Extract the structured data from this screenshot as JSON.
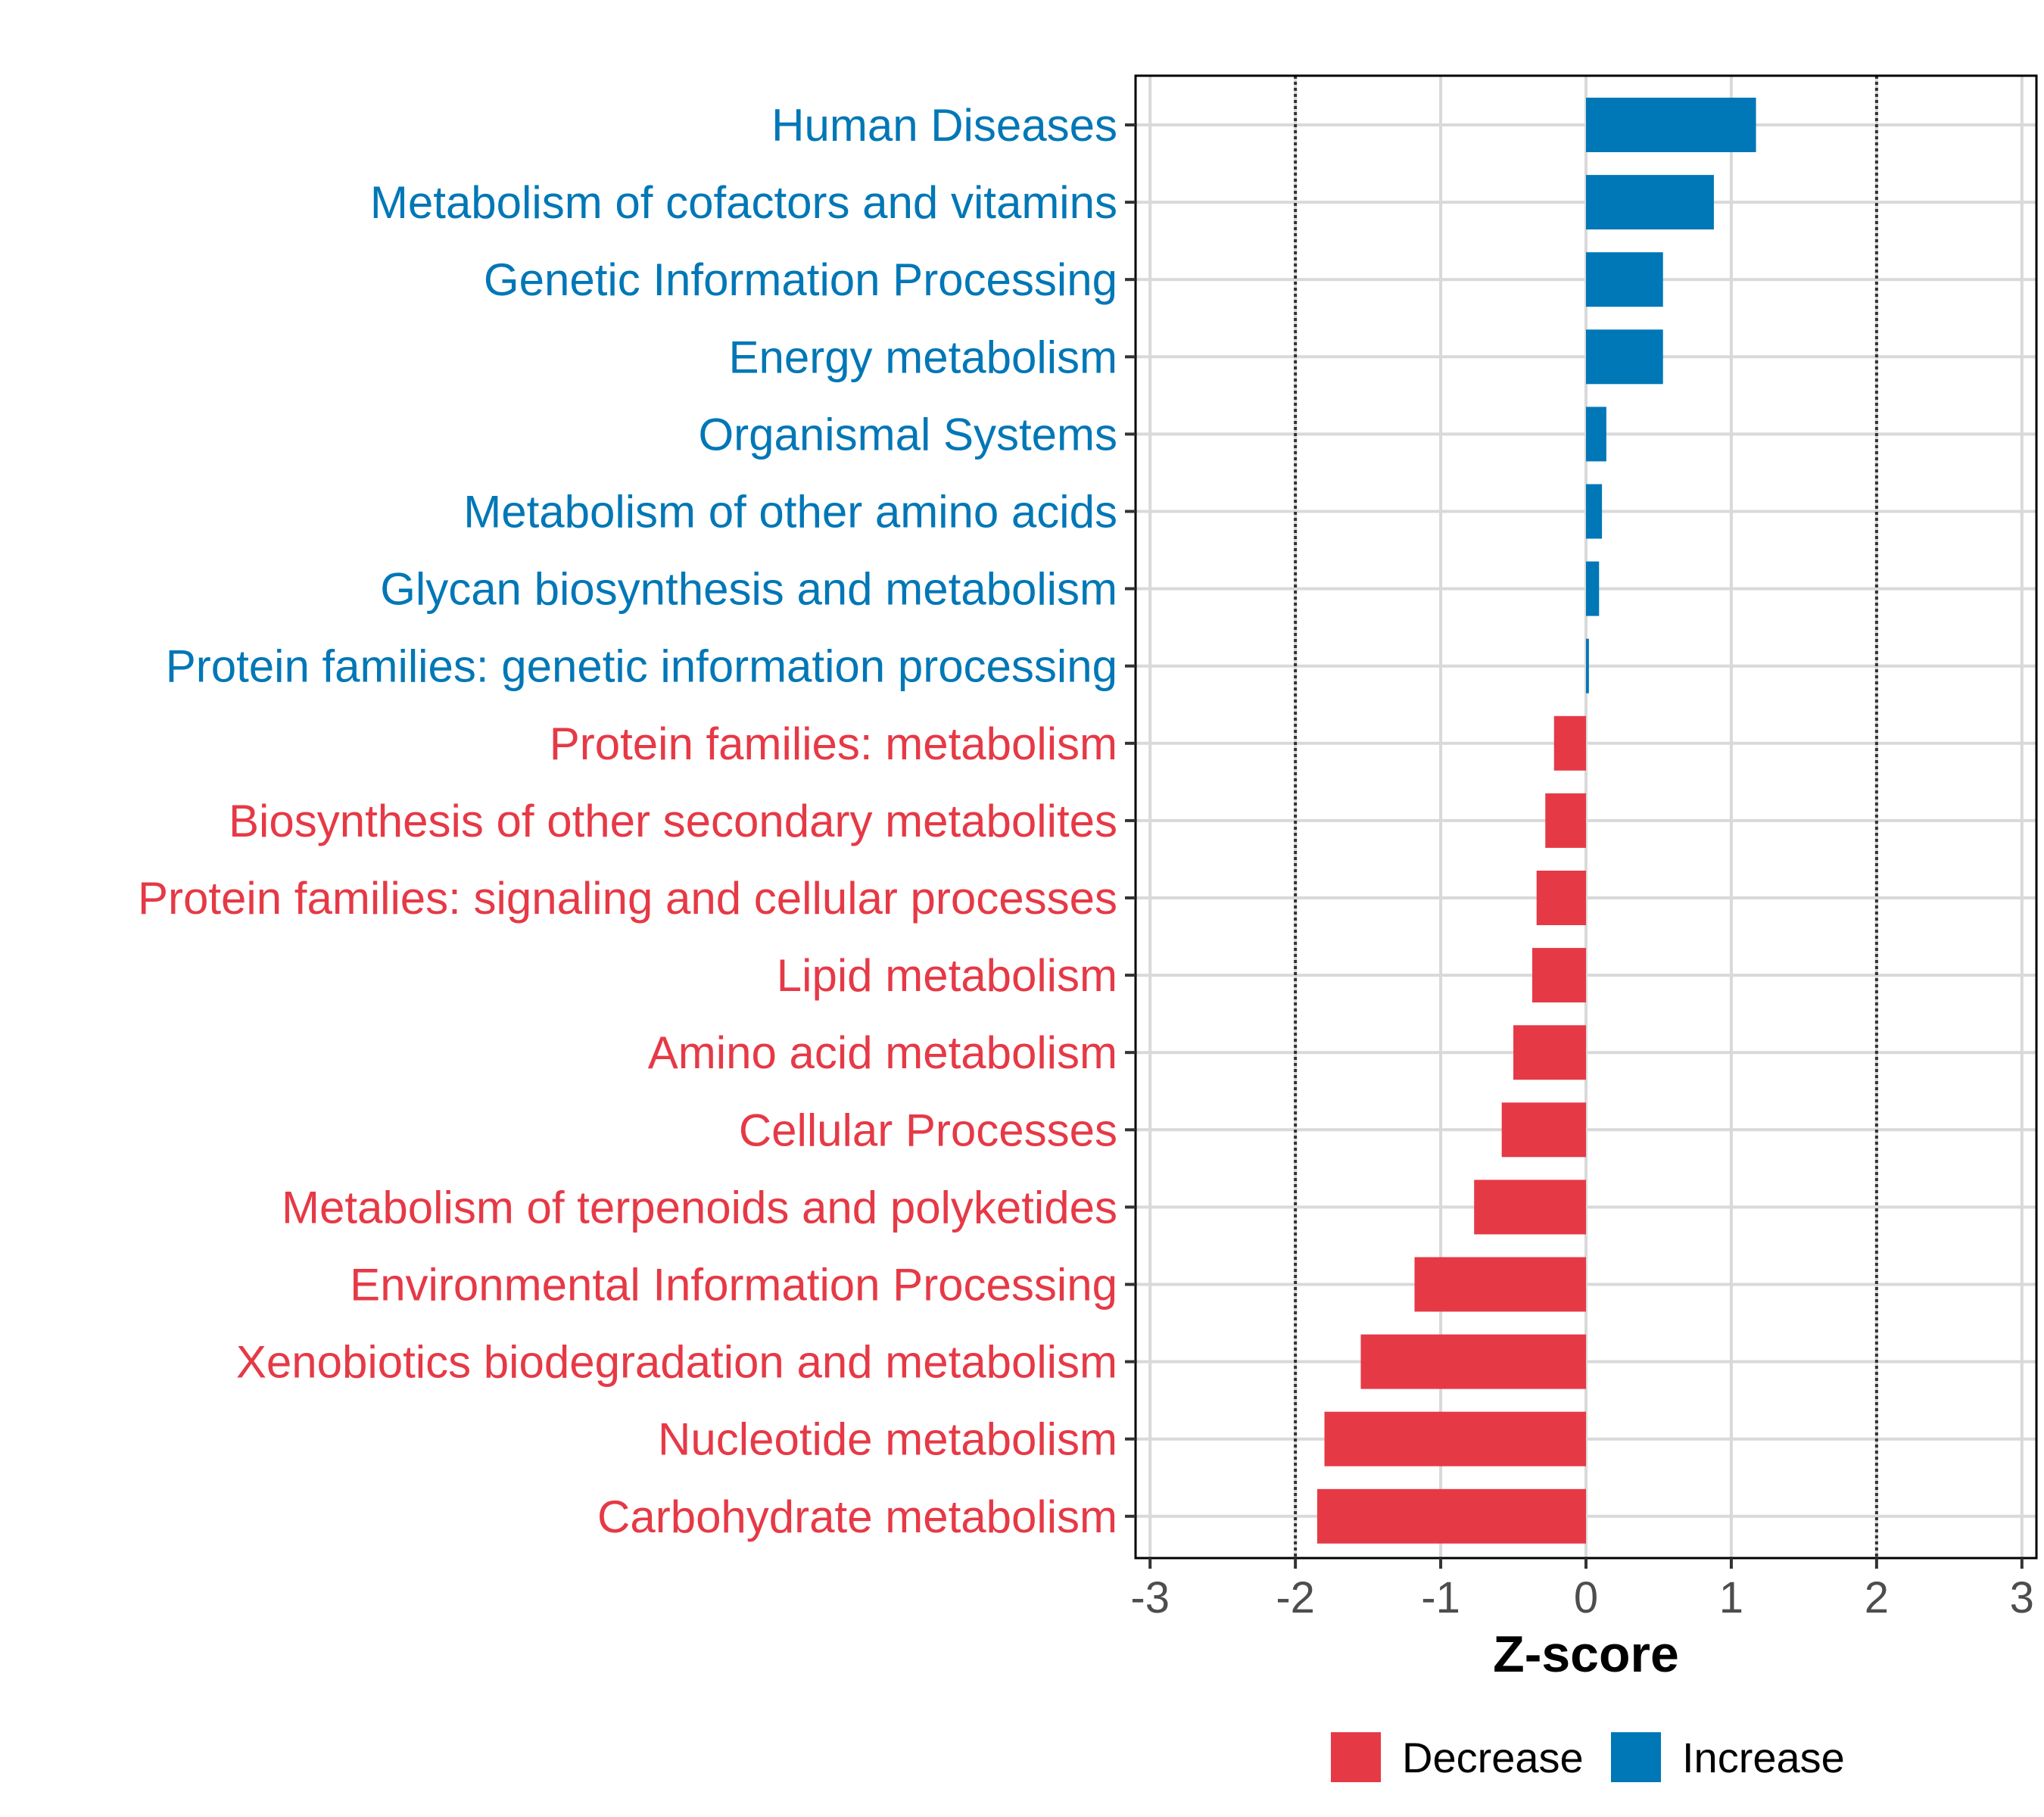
{
  "chart_data": {
    "type": "bar",
    "orientation": "horizontal",
    "xlabel": "Z-score",
    "xlim": [
      -3.1,
      3.1
    ],
    "xticks": [
      -3,
      -2,
      -1,
      0,
      1,
      2,
      3
    ],
    "reference_lines": [
      -2,
      2
    ],
    "grid": true,
    "categories": [
      "Human Diseases",
      "Metabolism of cofactors and vitamins",
      "Genetic Information Processing",
      "Energy metabolism",
      "Organismal Systems",
      "Metabolism of other amino acids",
      "Glycan biosynthesis and metabolism",
      "Protein families: genetic information processing",
      "Protein families: metabolism",
      "Biosynthesis of other secondary metabolites",
      "Protein families: signaling and cellular processes",
      "Lipid metabolism",
      "Amino acid metabolism",
      "Cellular Processes",
      "Metabolism of terpenoids and polyketides",
      "Environmental Information Processing",
      "Xenobiotics biodegradation and metabolism",
      "Nucleotide metabolism",
      "Carbohydrate metabolism"
    ],
    "values": [
      1.17,
      0.88,
      0.53,
      0.53,
      0.14,
      0.11,
      0.09,
      0.02,
      -0.22,
      -0.28,
      -0.34,
      -0.37,
      -0.5,
      -0.58,
      -0.77,
      -1.18,
      -1.55,
      -1.8,
      -1.85
    ],
    "groups": [
      "Increase",
      "Increase",
      "Increase",
      "Increase",
      "Increase",
      "Increase",
      "Increase",
      "Increase",
      "Decrease",
      "Decrease",
      "Decrease",
      "Decrease",
      "Decrease",
      "Decrease",
      "Decrease",
      "Decrease",
      "Decrease",
      "Decrease",
      "Decrease"
    ],
    "legend": {
      "position": "bottom",
      "entries": [
        {
          "name": "Decrease",
          "color": "#e63946"
        },
        {
          "name": "Increase",
          "color": "#0077b6"
        }
      ]
    },
    "colors": {
      "Decrease": "#e63946",
      "Increase": "#0077b6"
    }
  }
}
